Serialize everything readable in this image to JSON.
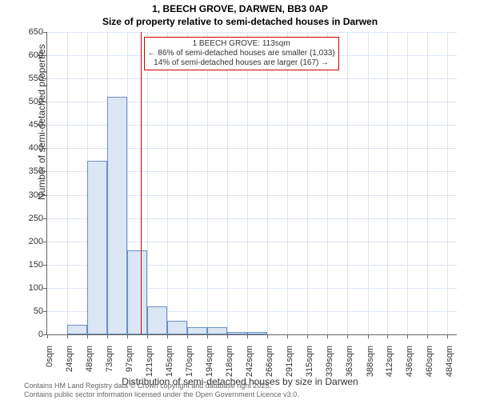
{
  "title_line1": "1, BEECH GROVE, DARWEN, BB3 0AP",
  "title_line2": "Size of property relative to semi-detached houses in Darwen",
  "ylabel": "Number of semi-detached properties",
  "xlabel": "Distribution of semi-detached houses by size in Darwen",
  "footer1": "Contains HM Land Registry data © Crown copyright and database right 2025.",
  "footer2": "Contains public sector information licensed under the Open Government Licence v3.0.",
  "chart": {
    "type": "histogram",
    "background_color": "#ffffff",
    "grid_color": "#dbe6f4",
    "axis_color": "#666666",
    "bar_fill": "#dbe6f4",
    "bar_stroke": "#6a8fc0",
    "marker_color": "#cc0000",
    "ylim": [
      0,
      650
    ],
    "yticks": [
      0,
      50,
      100,
      150,
      200,
      250,
      300,
      350,
      400,
      450,
      500,
      550,
      600,
      650
    ],
    "xticks": [
      "0sqm",
      "24sqm",
      "48sqm",
      "73sqm",
      "97sqm",
      "121sqm",
      "145sqm",
      "170sqm",
      "194sqm",
      "218sqm",
      "242sqm",
      "266sqm",
      "291sqm",
      "315sqm",
      "339sqm",
      "363sqm",
      "388sqm",
      "412sqm",
      "436sqm",
      "460sqm",
      "484sqm"
    ],
    "x_max_sqm": 496,
    "bars_sqm": [
      {
        "start": 24,
        "end": 48,
        "value": 20
      },
      {
        "start": 48,
        "end": 73,
        "value": 373
      },
      {
        "start": 73,
        "end": 97,
        "value": 510
      },
      {
        "start": 97,
        "end": 121,
        "value": 180
      },
      {
        "start": 121,
        "end": 145,
        "value": 60
      },
      {
        "start": 145,
        "end": 170,
        "value": 30
      },
      {
        "start": 170,
        "end": 194,
        "value": 15
      },
      {
        "start": 194,
        "end": 218,
        "value": 15
      },
      {
        "start": 218,
        "end": 242,
        "value": 5
      },
      {
        "start": 242,
        "end": 266,
        "value": 5
      }
    ],
    "marker_sqm": 113,
    "annotation": {
      "line1": "1 BEECH GROVE: 113sqm",
      "line2": "← 86% of semi-detached houses are smaller (1,033)",
      "line3": "14% of semi-detached houses are larger (167) →"
    },
    "title_fontsize": 12,
    "label_fontsize": 12,
    "tick_fontsize": 11,
    "anno_fontsize": 10,
    "footer_fontsize": 9
  }
}
